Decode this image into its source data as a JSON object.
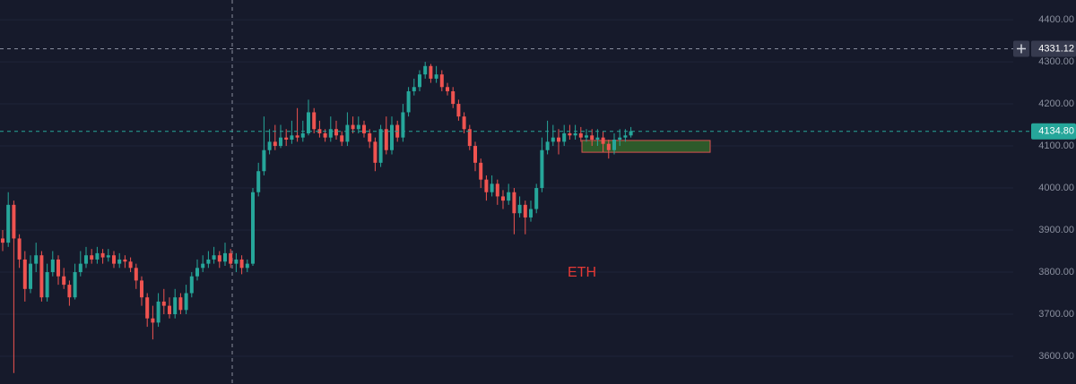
{
  "chart_data": {
    "type": "candlestick",
    "annotation": "ETH",
    "up_color": "#26a69a",
    "down_color": "#ef5350",
    "ylim": [
      3534,
      4447
    ],
    "yticks": [
      {
        "value": 3600,
        "label": "3600.00"
      },
      {
        "value": 3700,
        "label": "3700.00"
      },
      {
        "value": 3800,
        "label": "3800.00"
      },
      {
        "value": 3900,
        "label": "3900.00"
      },
      {
        "value": 4000,
        "label": "4000.00"
      },
      {
        "value": 4100,
        "label": "4100.00"
      },
      {
        "value": 4200,
        "label": "4200.00"
      },
      {
        "value": 4300,
        "label": "4300.00"
      },
      {
        "value": 4400,
        "label": "4400.00"
      }
    ],
    "grid": true,
    "crosshair_price": {
      "value": 4331.12,
      "label": "4331.12"
    },
    "last_price": {
      "value": 4134.8,
      "label": "4134.80"
    },
    "zone": {
      "high": 4113,
      "low": 4085
    },
    "open": [
      3880,
      3870,
      3960,
      3880,
      3830,
      3760,
      3820,
      3840,
      3740,
      3800,
      3830,
      3790,
      3770,
      3740,
      3800,
      3820,
      3840,
      3830,
      3845,
      3835,
      3840,
      3820,
      3830,
      3825,
      3810,
      3780,
      3740,
      3690,
      3680,
      3730,
      3720,
      3700,
      3740,
      3710,
      3750,
      3790,
      3810,
      3820,
      3830,
      3840,
      3825,
      3845,
      3820,
      3830,
      3810,
      3820,
      3990,
      4040,
      4090,
      4110,
      4100,
      4120,
      4115,
      4125,
      4120,
      4130,
      4180,
      4140,
      4130,
      4120,
      4140,
      4125,
      4110,
      4150,
      4140,
      4150,
      4130,
      4110,
      4060,
      4140,
      4090,
      4150,
      4120,
      4180,
      4230,
      4240,
      4270,
      4290,
      4260,
      4270,
      4240,
      4230,
      4200,
      4170,
      4140,
      4100,
      4060,
      4020,
      3990,
      4010,
      3980,
      3970,
      3990,
      3940,
      3960,
      3930,
      3950,
      4000,
      4090,
      4110,
      4120,
      4110,
      4130,
      4125,
      4130,
      4120,
      4125,
      4115,
      4120,
      4105,
      4090,
      4115,
      4120,
      4125
    ],
    "high": [
      3900,
      3990,
      3970,
      3890,
      3850,
      3840,
      3870,
      3850,
      3820,
      3850,
      3840,
      3810,
      3780,
      3820,
      3850,
      3860,
      3855,
      3860,
      3855,
      3855,
      3850,
      3845,
      3840,
      3835,
      3820,
      3790,
      3750,
      3720,
      3750,
      3760,
      3740,
      3760,
      3750,
      3770,
      3800,
      3830,
      3840,
      3850,
      3860,
      3850,
      3870,
      3855,
      3845,
      3840,
      3830,
      4000,
      4060,
      4170,
      4140,
      4150,
      4150,
      4140,
      4160,
      4190,
      4160,
      4210,
      4190,
      4160,
      4140,
      4170,
      4160,
      4135,
      4180,
      4170,
      4170,
      4160,
      4140,
      4120,
      4150,
      4170,
      4170,
      4160,
      4200,
      4240,
      4260,
      4280,
      4300,
      4295,
      4290,
      4280,
      4250,
      4240,
      4210,
      4180,
      4150,
      4110,
      4070,
      4030,
      4030,
      4020,
      3995,
      4010,
      4000,
      3980,
      3970,
      3970,
      4010,
      4120,
      4160,
      4150,
      4140,
      4150,
      4150,
      4150,
      4145,
      4140,
      4140,
      4140,
      4135,
      4115,
      4130,
      4140,
      4140,
      4145
    ],
    "low": [
      3850,
      3860,
      3560,
      3810,
      3730,
      3750,
      3800,
      3730,
      3730,
      3790,
      3770,
      3760,
      3720,
      3735,
      3790,
      3810,
      3820,
      3820,
      3820,
      3825,
      3810,
      3810,
      3810,
      3800,
      3760,
      3720,
      3670,
      3640,
      3670,
      3700,
      3690,
      3690,
      3700,
      3700,
      3740,
      3780,
      3800,
      3810,
      3820,
      3810,
      3815,
      3810,
      3800,
      3795,
      3800,
      3815,
      3980,
      4030,
      4080,
      4090,
      4095,
      4100,
      4105,
      4110,
      4110,
      4125,
      4130,
      4120,
      4110,
      4110,
      4115,
      4100,
      4100,
      4130,
      4130,
      4120,
      4095,
      4040,
      4050,
      4080,
      4080,
      4110,
      4110,
      4170,
      4220,
      4230,
      4260,
      4250,
      4250,
      4230,
      4220,
      4190,
      4160,
      4130,
      4090,
      4040,
      4000,
      3970,
      3980,
      3960,
      3950,
      3960,
      3890,
      3930,
      3890,
      3920,
      3940,
      3990,
      4080,
      4100,
      4080,
      4100,
      4115,
      4115,
      4110,
      4110,
      4100,
      4100,
      4085,
      4070,
      4080,
      4100,
      4110,
      4120
    ],
    "close": [
      3870,
      3960,
      3880,
      3830,
      3760,
      3820,
      3840,
      3740,
      3800,
      3830,
      3790,
      3770,
      3740,
      3800,
      3820,
      3840,
      3830,
      3845,
      3835,
      3840,
      3820,
      3830,
      3825,
      3810,
      3780,
      3740,
      3690,
      3680,
      3730,
      3720,
      3700,
      3740,
      3710,
      3750,
      3790,
      3810,
      3820,
      3830,
      3840,
      3825,
      3845,
      3820,
      3830,
      3810,
      3820,
      3990,
      4040,
      4090,
      4110,
      4100,
      4120,
      4115,
      4125,
      4120,
      4130,
      4180,
      4140,
      4130,
      4120,
      4140,
      4125,
      4110,
      4150,
      4140,
      4150,
      4130,
      4110,
      4060,
      4140,
      4090,
      4150,
      4120,
      4180,
      4230,
      4240,
      4270,
      4290,
      4260,
      4270,
      4240,
      4230,
      4200,
      4170,
      4140,
      4100,
      4060,
      4020,
      3990,
      4010,
      3980,
      3970,
      3990,
      3940,
      3960,
      3930,
      3950,
      4000,
      4090,
      4110,
      4120,
      4110,
      4130,
      4125,
      4130,
      4120,
      4125,
      4115,
      4120,
      4105,
      4090,
      4115,
      4120,
      4125,
      4135
    ]
  }
}
